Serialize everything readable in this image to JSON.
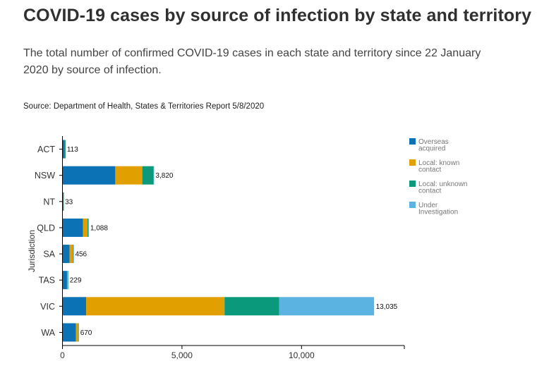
{
  "header": {
    "title": "COVID-19 cases by source of infection by state and territory",
    "subtitle": "The total number of confirmed COVID-19 cases in each state and territory since 22 January 2020 by source of infection.",
    "source": "Source: Department of Health, States & Territories Report 5/8/2020"
  },
  "chart_data": {
    "type": "bar",
    "orientation": "horizontal",
    "stacked": true,
    "ylabel": "Jurisdiction",
    "xlabel": "",
    "categories": [
      "ACT",
      "NSW",
      "NT",
      "QLD",
      "SA",
      "TAS",
      "VIC",
      "WA"
    ],
    "xlim": [
      0,
      14300
    ],
    "xticks": [
      0,
      5000,
      10000
    ],
    "xtick_labels": [
      "0",
      "5,000",
      "10,000"
    ],
    "totals": [
      113,
      3820,
      33,
      1088,
      456,
      229,
      13035,
      670
    ],
    "total_labels": [
      "113",
      "3,820",
      "33",
      "1,088",
      "456",
      "229",
      "13,035",
      "670"
    ],
    "legend_position": "right",
    "series": [
      {
        "name": "Overseas acquired",
        "legend_lines": [
          "Overseas",
          "acquired"
        ],
        "color": "#0a72b5",
        "values": [
          100,
          2210,
          30,
          860,
          300,
          190,
          990,
          560
        ]
      },
      {
        "name": "Local: known contact",
        "legend_lines": [
          "Local: known",
          "contact"
        ],
        "color": "#e2a000",
        "values": [
          10,
          1130,
          2,
          190,
          140,
          35,
          5790,
          95
        ]
      },
      {
        "name": "Local: unknown contact",
        "legend_lines": [
          "Local: unknown",
          "contact"
        ],
        "color": "#0a9a7b",
        "values": [
          3,
          470,
          1,
          35,
          15,
          3,
          2280,
          12
        ]
      },
      {
        "name": "Under Investigation",
        "legend_lines": [
          "Under",
          "Investigation"
        ],
        "color": "#5ab3e0",
        "values": [
          0,
          10,
          0,
          3,
          1,
          1,
          3975,
          3
        ]
      }
    ]
  }
}
